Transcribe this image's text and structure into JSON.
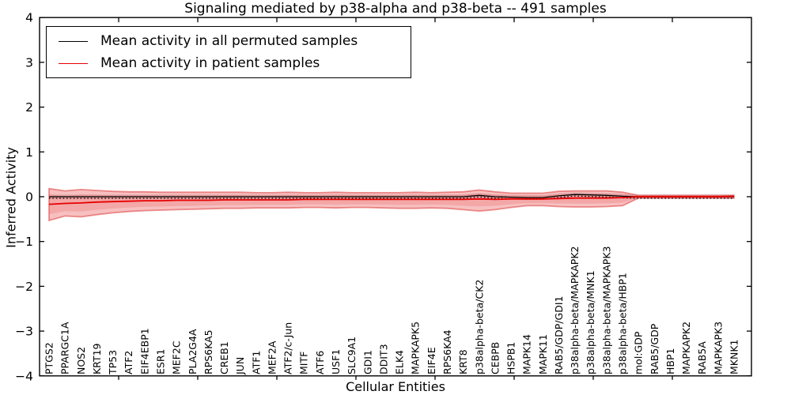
{
  "chart_data": {
    "type": "line",
    "title": "Signaling mediated by p38-alpha and p38-beta -- 491 samples",
    "xlabel": "Cellular Entities",
    "ylabel": "Inferred Activity",
    "ylim": [
      -4,
      4
    ],
    "grid": false,
    "legend_position": "upper left",
    "ytick_values": [
      4,
      3,
      2,
      1,
      0,
      -1,
      -2,
      -3,
      -4
    ],
    "ytick_labels": [
      "4",
      "3",
      "2",
      "1",
      "0",
      "−1",
      "−2",
      "−3",
      "−4"
    ],
    "categories": [
      "PTGS2",
      "PPARGC1A",
      "NOS2",
      "KRT19",
      "TP53",
      "ATF2",
      "EIF4EBP1",
      "ESR1",
      "MEF2C",
      "PLA2G4A",
      "RPS6KA5",
      "CREB1",
      "JUN",
      "ATF1",
      "MEF2A",
      "ATF2/c-Jun",
      "MITF",
      "ATF6",
      "USF1",
      "SLC9A1",
      "GDI1",
      "DDIT3",
      "ELK4",
      "MAPKAPK5",
      "EIF4E",
      "RPS6KA4",
      "KRT8",
      "p38alpha-beta/CK2",
      "CEBPB",
      "HSPB1",
      "MAPK14",
      "MAPK11",
      "RAB5/GDP/GDI1",
      "p38alpha-beta/MAPKAPK2",
      "p38alpha-beta/MNK1",
      "p38alpha-beta/MAPKAPK3",
      "p38alpha-beta/HBP1",
      "mol:GDP",
      "RAB5/GDP",
      "HBP1",
      "MAPKAPK2",
      "RAB5A",
      "MAPKAPK3",
      "MKNK1"
    ],
    "series": [
      {
        "name": "Mean activity in all permuted samples",
        "color": "#000000",
        "values": [
          0,
          0,
          0,
          0,
          0,
          0,
          0,
          0,
          0,
          0,
          0,
          0,
          0,
          0,
          0,
          0,
          0,
          0,
          0,
          0,
          0,
          0,
          0,
          0,
          0,
          0,
          0,
          0.03,
          0,
          -0.01,
          -0.02,
          -0.02,
          0.02,
          0.05,
          0.04,
          0.03,
          0.01,
          0,
          0,
          0,
          0,
          0,
          0,
          0
        ]
      },
      {
        "name": "Mean activity in patient samples",
        "color": "#e60000",
        "values": [
          -0.17,
          -0.15,
          -0.14,
          -0.12,
          -0.11,
          -0.1,
          -0.09,
          -0.09,
          -0.08,
          -0.08,
          -0.08,
          -0.07,
          -0.07,
          -0.07,
          -0.07,
          -0.07,
          -0.06,
          -0.06,
          -0.06,
          -0.06,
          -0.06,
          -0.06,
          -0.06,
          -0.06,
          -0.06,
          -0.06,
          -0.06,
          -0.05,
          -0.06,
          -0.05,
          -0.05,
          -0.05,
          -0.04,
          -0.03,
          -0.03,
          -0.03,
          -0.02,
          0,
          0,
          0,
          0,
          0,
          0,
          0.01
        ]
      }
    ],
    "patient_band_upper": [
      0.18,
      0.13,
      0.16,
      0.14,
      0.12,
      0.11,
      0.11,
      0.1,
      0.1,
      0.1,
      0.1,
      0.1,
      0.1,
      0.09,
      0.09,
      0.1,
      0.09,
      0.09,
      0.1,
      0.09,
      0.09,
      0.09,
      0.09,
      0.1,
      0.09,
      0.1,
      0.11,
      0.15,
      0.11,
      0.08,
      0.08,
      0.08,
      0.12,
      0.13,
      0.13,
      0.13,
      0.1,
      0.03,
      0.03,
      0.03,
      0.03,
      0.03,
      0.03,
      0.03
    ],
    "patient_band_lower": [
      -0.53,
      -0.43,
      -0.45,
      -0.4,
      -0.36,
      -0.33,
      -0.31,
      -0.3,
      -0.29,
      -0.28,
      -0.27,
      -0.26,
      -0.26,
      -0.25,
      -0.25,
      -0.25,
      -0.24,
      -0.24,
      -0.25,
      -0.24,
      -0.24,
      -0.25,
      -0.26,
      -0.26,
      -0.25,
      -0.26,
      -0.29,
      -0.32,
      -0.29,
      -0.24,
      -0.2,
      -0.2,
      -0.22,
      -0.23,
      -0.23,
      -0.22,
      -0.2,
      -0.03,
      -0.03,
      -0.03,
      -0.03,
      -0.03,
      -0.03,
      -0.03
    ],
    "patient_band_inner_scale": 0.62,
    "permuted_band_halfwidth": 0.05,
    "permuted_dotted_offset": -0.035,
    "colors": {
      "band_fill": "rgba(235,90,90,0.38)",
      "band_inner_fill": "rgba(235,90,90,0.25)",
      "band_edge": "rgba(222,60,60,0.55)",
      "permuted_band_fill": "rgba(0,0,0,0.13)",
      "axis": "#000000"
    }
  }
}
